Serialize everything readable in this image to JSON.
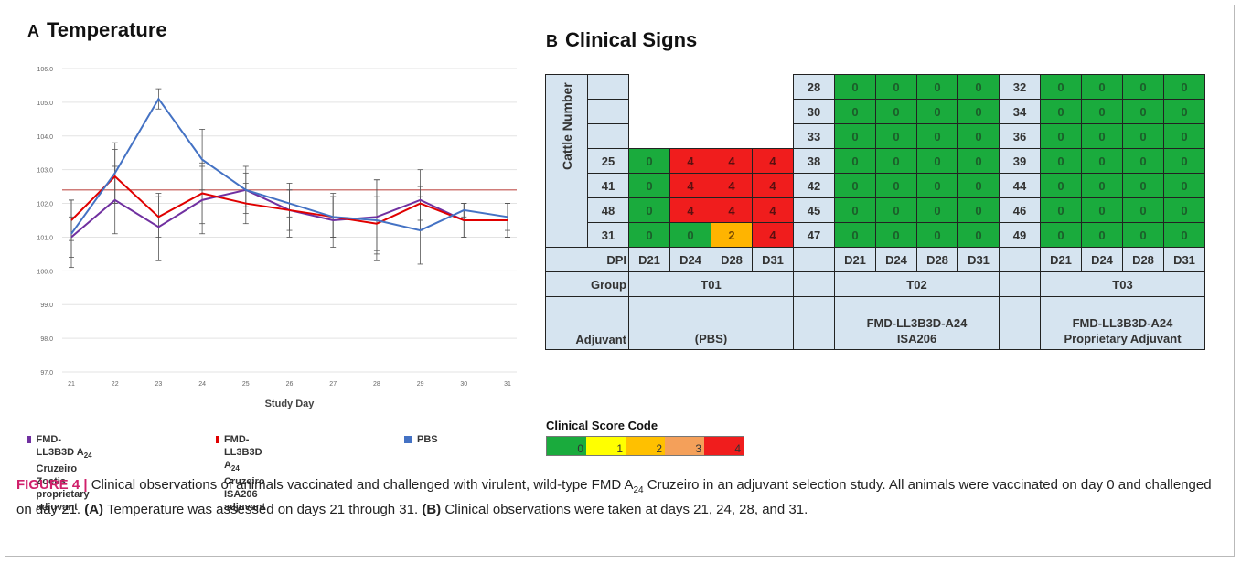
{
  "panel_a": {
    "letter": "A",
    "title": "Temperature",
    "xlabel": "Study Day",
    "legend": [
      {
        "name_pre": "FMD-LL3B3D A",
        "sub": "24",
        "name_post": " Cruzeiro",
        "line2": "Zoetis proprietary adjuvant",
        "color": "#7030a0"
      },
      {
        "name_pre": "FMD-LL3B3D A",
        "sub": "24",
        "name_post": " Cruzeiro",
        "line2": "ISA206 adjuvant",
        "color": "#e00000"
      },
      {
        "name_pre": "PBS",
        "sub": "",
        "name_post": "",
        "line2": "",
        "color": "#4472c4"
      }
    ]
  },
  "chart_data": {
    "type": "line",
    "x": [
      21,
      22,
      23,
      24,
      25,
      26,
      27,
      28,
      29,
      30,
      31
    ],
    "xlabel": "Study Day",
    "ylabel": "",
    "ylim": [
      97.0,
      106.0
    ],
    "yticks": [
      "97.0",
      "98.0",
      "99.0",
      "100.0",
      "101.0",
      "102.0",
      "103.0",
      "104.0",
      "105.0",
      "106.0"
    ],
    "threshold": 102.4,
    "threshold_color": "#c0504d",
    "grid": true,
    "series": [
      {
        "color": "#7030a0",
        "values": [
          101.0,
          102.1,
          101.3,
          102.1,
          102.4,
          101.8,
          101.5,
          101.6,
          102.1,
          101.5,
          101.5
        ],
        "err": [
          0.6,
          1.0,
          1.0,
          1.0,
          0.7,
          0.8,
          0.8,
          1.1,
          0.9,
          0.5,
          0.5
        ]
      },
      {
        "color": "#e00000",
        "values": [
          101.5,
          102.8,
          101.6,
          102.3,
          102.0,
          101.8,
          101.6,
          101.4,
          102.0,
          101.5,
          101.5
        ],
        "err": [
          0.6,
          0.8,
          0.6,
          0.9,
          0.6,
          0.6,
          0.6,
          0.8,
          0.5,
          0.5,
          0.5
        ]
      },
      {
        "color": "#4472c4",
        "values": [
          101.1,
          102.9,
          105.1,
          103.3,
          102.4,
          102.0,
          101.6,
          101.5,
          101.2,
          101.8,
          101.6
        ],
        "err": [
          1.0,
          0.9,
          0.3,
          0.9,
          0.5,
          0.4,
          0.6,
          1.2,
          1.0,
          0.2,
          0.4
        ]
      }
    ]
  },
  "panel_b": {
    "letter": "B",
    "title": "Clinical Signs",
    "ylabel": "Cattle Number",
    "t01_cattle": [
      "25",
      "41",
      "48",
      "31"
    ],
    "t01_scores": [
      [
        "0",
        "4",
        "4",
        "4"
      ],
      [
        "0",
        "4",
        "4",
        "4"
      ],
      [
        "0",
        "4",
        "4",
        "4"
      ],
      [
        "0",
        "0",
        "2",
        "4"
      ]
    ],
    "t02_cattle": [
      "28",
      "30",
      "33",
      "38",
      "42",
      "45",
      "47"
    ],
    "t03_cattle": [
      "32",
      "34",
      "36",
      "39",
      "44",
      "46",
      "49"
    ],
    "zero": "0",
    "dpi_label": "DPI",
    "days": [
      "D21",
      "D24",
      "D28",
      "D31"
    ],
    "group_label": "Group",
    "groups": [
      "T01",
      "T02",
      "T03"
    ],
    "adjuvant_label": "Adjuvant",
    "adjuvants": [
      {
        "line1": "(PBS)",
        "line2": ""
      },
      {
        "line1": "FMD-LL3B3D-A24",
        "line2": "ISA206"
      },
      {
        "line1": "FMD-LL3B3D-A24",
        "line2": "Proprietary Adjuvant"
      }
    ],
    "score_code_title": "Clinical Score Code",
    "score_codes": [
      {
        "label": "0",
        "color": "#1aab3d"
      },
      {
        "label": "1",
        "color": "#ffff00"
      },
      {
        "label": "2",
        "color": "#ffc000"
      },
      {
        "label": "3",
        "color": "#f4a05a"
      },
      {
        "label": "4",
        "color": "#f01d1d"
      }
    ]
  },
  "caption": {
    "figure_label": "FIGURE 4 |",
    "text_1": " Clinical observations of animals vaccinated and challenged with virulent, wild-type FMD A",
    "sub_1": "24",
    "text_2": " Cruzeiro in an adjuvant selection study. All animals were vaccinated on day 0 and challenged on day 21. ",
    "a_label": "(A)",
    "text_3": " Temperature was assessed on days 21 through 31. ",
    "b_label": "(B)",
    "text_4": " Clinical observations were taken at days 21, 24, 28, and 31."
  }
}
